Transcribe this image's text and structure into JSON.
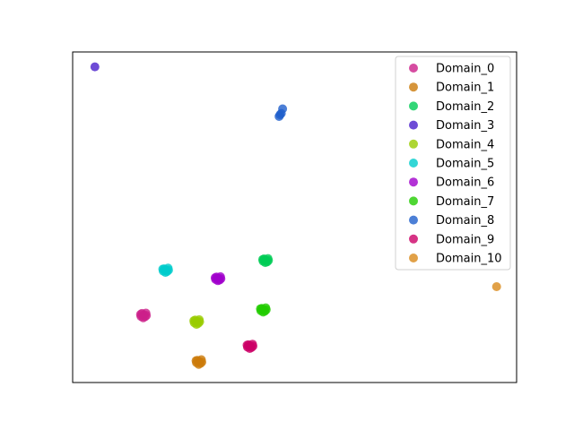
{
  "chart_data": {
    "type": "scatter",
    "title": "",
    "xlabel": "",
    "ylabel": "",
    "xlim": [
      0,
      100
    ],
    "ylim": [
      0,
      100
    ],
    "ticks_visible": false,
    "grid": false,
    "legend": "upper right",
    "series": [
      {
        "name": "Domain_0",
        "color": "#cc1f8a",
        "points": [
          [
            16.0,
            20.5
          ],
          [
            15.6,
            20.9
          ],
          [
            16.3,
            19.9
          ],
          [
            15.4,
            20.0
          ],
          [
            16.5,
            21.0
          ],
          [
            15.9,
            19.6
          ],
          [
            16.6,
            20.3
          ],
          [
            15.3,
            20.6
          ]
        ]
      },
      {
        "name": "Domain_1",
        "color": "#cc7a0a",
        "points": [
          [
            28.5,
            6.3
          ],
          [
            28.1,
            6.7
          ],
          [
            28.8,
            5.8
          ],
          [
            27.9,
            6.0
          ],
          [
            29.0,
            6.9
          ],
          [
            28.4,
            5.5
          ],
          [
            29.1,
            6.2
          ],
          [
            27.8,
            6.6
          ]
        ]
      },
      {
        "name": "Domain_2",
        "color": "#00cc55",
        "points": [
          [
            43.5,
            37.0
          ],
          [
            43.1,
            37.4
          ],
          [
            43.8,
            36.5
          ],
          [
            42.9,
            36.7
          ],
          [
            44.0,
            37.5
          ],
          [
            43.4,
            36.3
          ],
          [
            44.1,
            36.9
          ],
          [
            42.8,
            37.2
          ]
        ]
      },
      {
        "name": "Domain_3",
        "color": "#4a1fcc",
        "points": [
          [
            5.0,
            95.5
          ]
        ]
      },
      {
        "name": "Domain_4",
        "color": "#99cc00",
        "points": [
          [
            28.0,
            18.5
          ],
          [
            27.6,
            18.9
          ],
          [
            28.3,
            17.9
          ],
          [
            27.4,
            18.1
          ],
          [
            28.5,
            19.0
          ],
          [
            27.9,
            17.6
          ],
          [
            28.6,
            18.4
          ],
          [
            27.3,
            18.7
          ]
        ]
      },
      {
        "name": "Domain_5",
        "color": "#00cccc",
        "points": [
          [
            21.0,
            34.0
          ],
          [
            20.6,
            34.4
          ],
          [
            21.3,
            33.6
          ],
          [
            20.4,
            33.7
          ],
          [
            21.5,
            34.6
          ],
          [
            20.9,
            33.3
          ],
          [
            21.6,
            34.0
          ],
          [
            20.3,
            34.3
          ]
        ]
      },
      {
        "name": "Domain_6",
        "color": "#a000cc",
        "points": [
          [
            32.8,
            31.5
          ],
          [
            32.4,
            31.9
          ],
          [
            33.1,
            31.0
          ],
          [
            32.2,
            31.2
          ],
          [
            33.3,
            32.0
          ],
          [
            32.7,
            30.8
          ],
          [
            33.4,
            31.4
          ],
          [
            32.1,
            31.7
          ]
        ]
      },
      {
        "name": "Domain_7",
        "color": "#22cc00",
        "points": [
          [
            43.0,
            22.0
          ],
          [
            42.6,
            22.4
          ],
          [
            43.3,
            21.6
          ],
          [
            42.4,
            21.7
          ],
          [
            43.5,
            22.6
          ],
          [
            42.9,
            21.3
          ],
          [
            43.6,
            22.0
          ],
          [
            42.3,
            22.3
          ]
        ]
      },
      {
        "name": "Domain_8",
        "color": "#1f5fcc",
        "points": [
          [
            46.5,
            80.5
          ],
          [
            47.0,
            81.4
          ],
          [
            47.3,
            82.8
          ],
          [
            46.7,
            81.0
          ]
        ]
      },
      {
        "name": "Domain_9",
        "color": "#cc0066",
        "points": [
          [
            40.0,
            11.0
          ],
          [
            39.6,
            11.4
          ],
          [
            40.3,
            10.6
          ],
          [
            39.4,
            10.7
          ],
          [
            40.5,
            11.6
          ],
          [
            39.9,
            10.3
          ],
          [
            40.6,
            11.0
          ],
          [
            39.3,
            11.3
          ]
        ]
      },
      {
        "name": "Domain_10",
        "color": "#d9891a",
        "points": [
          [
            95.5,
            29.0
          ]
        ]
      }
    ]
  }
}
